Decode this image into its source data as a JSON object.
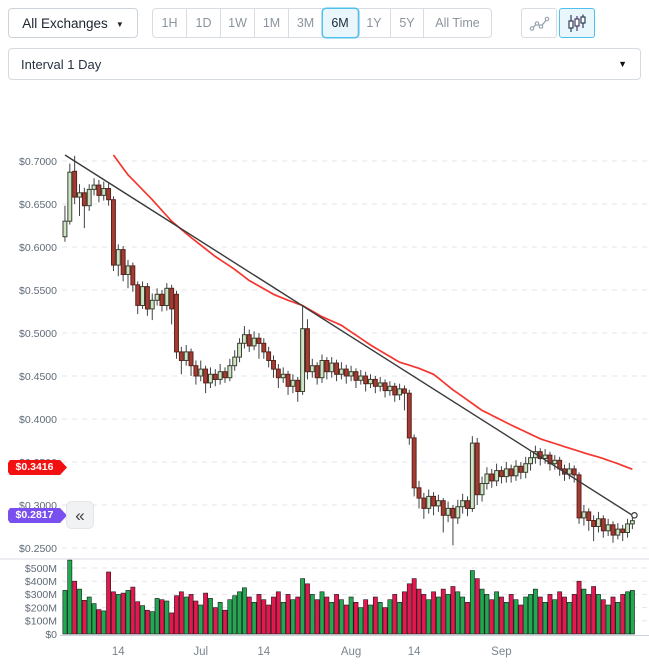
{
  "toolbar": {
    "exchange_selector": {
      "label": "All Exchanges",
      "caret": "▼"
    },
    "ranges": [
      "1H",
      "1D",
      "1W",
      "1M",
      "3M",
      "6M",
      "1Y",
      "5Y",
      "All Time"
    ],
    "selected_range": "6M",
    "chart_type": {
      "options": [
        "line",
        "candlestick"
      ],
      "selected": "candlestick"
    }
  },
  "interval_selector": {
    "label": "Interval 1 Day",
    "caret": "▼"
  },
  "price_labels": {
    "ma_badge": "$0.3416",
    "last_badge": "$0.2817",
    "collapse_button": "«"
  },
  "colors": {
    "accent_blue": "#4fc0ee",
    "accent_blue_bg": "#e9f7fd",
    "candle_up_fill": "#cfe3c6",
    "candle_up_border": "#39422f",
    "candle_down_fill": "#a63b31",
    "candle_down_border": "#59231d",
    "wick": "#3f4347",
    "ma_line": "#f5362e",
    "trendline": "#3a3a3a",
    "vol_up": "#22a94f",
    "vol_down": "#e7164d",
    "vol_border": "#14181c",
    "grid": "#e2e6ea",
    "axis_text": "#606b78",
    "badge_red": "#f21010",
    "badge_purple": "#7a4ff0"
  },
  "chart_data": {
    "type": "candlestick",
    "title": "",
    "ylim": [
      0.25,
      0.7
    ],
    "grid": "dashed-horizontal",
    "y_axis": {
      "ticks": [
        "$0.7000",
        "$0.6500",
        "$0.6000",
        "$0.5500",
        "$0.5000",
        "$0.4500",
        "$0.4000",
        "$0.3500",
        "$0.3000",
        "$0.2500"
      ],
      "values": [
        0.7,
        0.65,
        0.6,
        0.55,
        0.5,
        0.45,
        0.4,
        0.35,
        0.3,
        0.25
      ]
    },
    "volume_axis": {
      "ticks": [
        "$500M",
        "$400M",
        "$300M",
        "$200M",
        "$100M",
        "$0"
      ],
      "values": [
        500,
        400,
        300,
        200,
        100,
        0
      ]
    },
    "x_axis": {
      "ticks": [
        {
          "i": 11,
          "text": "14"
        },
        {
          "i": 28,
          "text": "Jul"
        },
        {
          "i": 41,
          "text": "14"
        },
        {
          "i": 59,
          "text": "Aug"
        },
        {
          "i": 72,
          "text": "14"
        },
        {
          "i": 90,
          "text": "Sep"
        }
      ]
    },
    "candles": [
      [
        0.612,
        0.648,
        0.606,
        0.63
      ],
      [
        0.63,
        0.697,
        0.626,
        0.687
      ],
      [
        0.688,
        0.706,
        0.65,
        0.658
      ],
      [
        0.658,
        0.673,
        0.636,
        0.663
      ],
      [
        0.663,
        0.669,
        0.622,
        0.648
      ],
      [
        0.648,
        0.673,
        0.642,
        0.667
      ],
      [
        0.667,
        0.68,
        0.66,
        0.672
      ],
      [
        0.672,
        0.678,
        0.652,
        0.66
      ],
      [
        0.66,
        0.676,
        0.654,
        0.668
      ],
      [
        0.668,
        0.674,
        0.648,
        0.655
      ],
      [
        0.655,
        0.659,
        0.572,
        0.579
      ],
      [
        0.579,
        0.603,
        0.566,
        0.597
      ],
      [
        0.597,
        0.601,
        0.56,
        0.568
      ],
      [
        0.568,
        0.585,
        0.552,
        0.578
      ],
      [
        0.578,
        0.582,
        0.548,
        0.556
      ],
      [
        0.556,
        0.56,
        0.522,
        0.532
      ],
      [
        0.532,
        0.56,
        0.528,
        0.554
      ],
      [
        0.554,
        0.558,
        0.52,
        0.528
      ],
      [
        0.528,
        0.546,
        0.515,
        0.538
      ],
      [
        0.538,
        0.552,
        0.532,
        0.545
      ],
      [
        0.545,
        0.55,
        0.525,
        0.532
      ],
      [
        0.532,
        0.558,
        0.526,
        0.552
      ],
      [
        0.552,
        0.556,
        0.51,
        0.528
      ],
      [
        0.545,
        0.549,
        0.47,
        0.478
      ],
      [
        0.478,
        0.484,
        0.452,
        0.468
      ],
      [
        0.468,
        0.486,
        0.462,
        0.478
      ],
      [
        0.478,
        0.482,
        0.45,
        0.462
      ],
      [
        0.462,
        0.468,
        0.44,
        0.45
      ],
      [
        0.45,
        0.468,
        0.444,
        0.458
      ],
      [
        0.458,
        0.462,
        0.43,
        0.442
      ],
      [
        0.442,
        0.46,
        0.436,
        0.452
      ],
      [
        0.452,
        0.458,
        0.438,
        0.446
      ],
      [
        0.446,
        0.464,
        0.44,
        0.455
      ],
      [
        0.455,
        0.46,
        0.442,
        0.448
      ],
      [
        0.448,
        0.47,
        0.444,
        0.462
      ],
      [
        0.462,
        0.48,
        0.456,
        0.472
      ],
      [
        0.472,
        0.494,
        0.466,
        0.488
      ],
      [
        0.488,
        0.508,
        0.482,
        0.498
      ],
      [
        0.498,
        0.504,
        0.478,
        0.485
      ],
      [
        0.485,
        0.502,
        0.48,
        0.494
      ],
      [
        0.494,
        0.5,
        0.47,
        0.488
      ],
      [
        0.488,
        0.494,
        0.47,
        0.478
      ],
      [
        0.478,
        0.484,
        0.46,
        0.468
      ],
      [
        0.468,
        0.474,
        0.448,
        0.458
      ],
      [
        0.458,
        0.464,
        0.436,
        0.448
      ],
      [
        0.448,
        0.46,
        0.442,
        0.452
      ],
      [
        0.452,
        0.456,
        0.428,
        0.438
      ],
      [
        0.438,
        0.452,
        0.43,
        0.445
      ],
      [
        0.445,
        0.449,
        0.42,
        0.432
      ],
      [
        0.432,
        0.532,
        0.428,
        0.505
      ],
      [
        0.505,
        0.516,
        0.446,
        0.455
      ],
      [
        0.455,
        0.47,
        0.448,
        0.462
      ],
      [
        0.462,
        0.466,
        0.44,
        0.448
      ],
      [
        0.448,
        0.475,
        0.442,
        0.468
      ],
      [
        0.468,
        0.472,
        0.446,
        0.455
      ],
      [
        0.455,
        0.472,
        0.448,
        0.465
      ],
      [
        0.465,
        0.469,
        0.444,
        0.452
      ],
      [
        0.452,
        0.466,
        0.446,
        0.458
      ],
      [
        0.458,
        0.463,
        0.441,
        0.45
      ],
      [
        0.45,
        0.462,
        0.444,
        0.455
      ],
      [
        0.455,
        0.459,
        0.436,
        0.445
      ],
      [
        0.445,
        0.457,
        0.44,
        0.45
      ],
      [
        0.45,
        0.455,
        0.432,
        0.441
      ],
      [
        0.441,
        0.452,
        0.436,
        0.446
      ],
      [
        0.446,
        0.45,
        0.43,
        0.438
      ],
      [
        0.438,
        0.449,
        0.432,
        0.442
      ],
      [
        0.442,
        0.446,
        0.425,
        0.433
      ],
      [
        0.433,
        0.444,
        0.427,
        0.438
      ],
      [
        0.438,
        0.442,
        0.42,
        0.428
      ],
      [
        0.428,
        0.441,
        0.422,
        0.435
      ],
      [
        0.435,
        0.439,
        0.41,
        0.43
      ],
      [
        0.43,
        0.434,
        0.37,
        0.378
      ],
      [
        0.378,
        0.382,
        0.31,
        0.32
      ],
      [
        0.32,
        0.328,
        0.296,
        0.308
      ],
      [
        0.308,
        0.314,
        0.284,
        0.296
      ],
      [
        0.296,
        0.318,
        0.29,
        0.31
      ],
      [
        0.31,
        0.315,
        0.288,
        0.299
      ],
      [
        0.299,
        0.312,
        0.292,
        0.305
      ],
      [
        0.305,
        0.308,
        0.268,
        0.288
      ],
      [
        0.288,
        0.304,
        0.28,
        0.296
      ],
      [
        0.296,
        0.3,
        0.253,
        0.285
      ],
      [
        0.285,
        0.306,
        0.278,
        0.298
      ],
      [
        0.298,
        0.313,
        0.29,
        0.305
      ],
      [
        0.305,
        0.31,
        0.287,
        0.296
      ],
      [
        0.296,
        0.38,
        0.292,
        0.372
      ],
      [
        0.372,
        0.378,
        0.3,
        0.312
      ],
      [
        0.312,
        0.333,
        0.304,
        0.325
      ],
      [
        0.325,
        0.344,
        0.318,
        0.336
      ],
      [
        0.336,
        0.342,
        0.32,
        0.328
      ],
      [
        0.328,
        0.348,
        0.322,
        0.34
      ],
      [
        0.34,
        0.345,
        0.325,
        0.333
      ],
      [
        0.333,
        0.35,
        0.326,
        0.342
      ],
      [
        0.342,
        0.347,
        0.326,
        0.334
      ],
      [
        0.334,
        0.352,
        0.328,
        0.345
      ],
      [
        0.345,
        0.35,
        0.33,
        0.338
      ],
      [
        0.338,
        0.356,
        0.331,
        0.348
      ],
      [
        0.348,
        0.362,
        0.34,
        0.355
      ],
      [
        0.355,
        0.369,
        0.348,
        0.362
      ],
      [
        0.362,
        0.366,
        0.346,
        0.354
      ],
      [
        0.354,
        0.365,
        0.348,
        0.358
      ],
      [
        0.358,
        0.362,
        0.34,
        0.348
      ],
      [
        0.348,
        0.358,
        0.341,
        0.352
      ],
      [
        0.352,
        0.356,
        0.334,
        0.342
      ],
      [
        0.342,
        0.347,
        0.328,
        0.336
      ],
      [
        0.336,
        0.349,
        0.33,
        0.342
      ],
      [
        0.342,
        0.346,
        0.326,
        0.335
      ],
      [
        0.335,
        0.338,
        0.278,
        0.285
      ],
      [
        0.285,
        0.3,
        0.276,
        0.292
      ],
      [
        0.292,
        0.296,
        0.27,
        0.282
      ],
      [
        0.282,
        0.288,
        0.258,
        0.275
      ],
      [
        0.275,
        0.292,
        0.268,
        0.284
      ],
      [
        0.284,
        0.288,
        0.262,
        0.27
      ],
      [
        0.27,
        0.284,
        0.264,
        0.277
      ],
      [
        0.277,
        0.281,
        0.256,
        0.265
      ],
      [
        0.265,
        0.279,
        0.26,
        0.272
      ],
      [
        0.272,
        0.277,
        0.258,
        0.268
      ],
      [
        0.268,
        0.284,
        0.262,
        0.278
      ],
      [
        0.278,
        0.29,
        0.272,
        0.2817
      ]
    ],
    "volumes_millions": [
      330,
      560,
      400,
      340,
      255,
      280,
      230,
      185,
      175,
      470,
      320,
      300,
      310,
      330,
      355,
      245,
      215,
      180,
      170,
      270,
      260,
      250,
      160,
      290,
      320,
      280,
      300,
      250,
      220,
      310,
      270,
      200,
      240,
      180,
      260,
      290,
      320,
      350,
      280,
      240,
      300,
      260,
      220,
      280,
      320,
      240,
      300,
      260,
      280,
      420,
      380,
      300,
      260,
      320,
      280,
      240,
      300,
      260,
      220,
      280,
      240,
      200,
      260,
      220,
      280,
      240,
      200,
      260,
      300,
      240,
      320,
      380,
      420,
      340,
      300,
      260,
      320,
      280,
      340,
      300,
      360,
      320,
      280,
      240,
      480,
      420,
      340,
      300,
      260,
      320,
      280,
      240,
      300,
      260,
      220,
      280,
      300,
      340,
      280,
      240,
      300,
      260,
      320,
      280,
      240,
      300,
      400,
      340,
      300,
      360,
      300,
      260,
      220,
      280,
      240,
      300,
      320,
      330
    ],
    "ma_line": {
      "value": 0.3416,
      "points": [
        [
          10,
          0.707
        ],
        [
          13,
          0.684
        ],
        [
          18,
          0.655
        ],
        [
          22,
          0.63
        ],
        [
          26,
          0.611
        ],
        [
          31,
          0.589
        ],
        [
          35,
          0.574
        ],
        [
          38,
          0.561
        ],
        [
          43,
          0.545
        ],
        [
          46,
          0.538
        ],
        [
          49,
          0.532
        ],
        [
          53,
          0.519
        ],
        [
          57,
          0.509
        ],
        [
          63,
          0.486
        ],
        [
          69,
          0.466
        ],
        [
          73,
          0.459
        ],
        [
          76,
          0.452
        ],
        [
          80,
          0.434
        ],
        [
          86,
          0.41
        ],
        [
          92,
          0.393
        ],
        [
          98,
          0.377
        ],
        [
          104,
          0.366
        ],
        [
          108,
          0.359
        ],
        [
          111,
          0.354
        ],
        [
          114,
          0.348
        ],
        [
          117,
          0.3416
        ]
      ]
    },
    "trendline": {
      "from": [
        0,
        0.707
      ],
      "to": [
        117,
        0.288
      ],
      "end_marker": true
    },
    "last_price": 0.2817
  }
}
